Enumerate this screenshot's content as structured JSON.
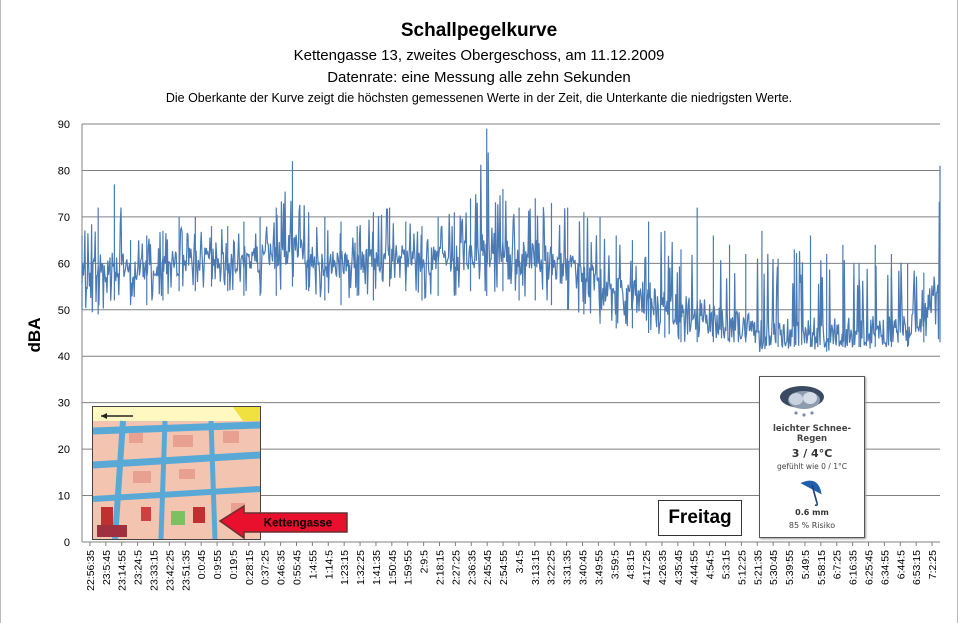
{
  "title": "Schallpegelkurve",
  "subtitle1": "Kettengasse 13, zweites Obergeschoss, am 11.12.2009",
  "subtitle2": "Datenrate: eine Messung alle zehn Sekunden",
  "subtitle3": "Die Oberkante der Kurve zeigt die höchsten gemessenen Werte  in der Zeit, die Unterkante  die niedrigsten Werte.",
  "map_inset": {
    "arrow_label": "Kettengasse"
  },
  "weather_widget": {
    "icon": "snow-rain-cloud-icon",
    "description": "leichter Schnee-Regen",
    "temperature": "3 / 4°C",
    "feels_like": "gefühlt wie 0 / 1°C",
    "rain_icon": "umbrella-icon",
    "precipitation": "0.6 mm",
    "risk": "85 % Risiko"
  },
  "day_label": "Freitag",
  "chart_data": {
    "type": "line",
    "title": "Schallpegelkurve",
    "xlabel": "",
    "ylabel": "dBA",
    "ylim": [
      0,
      90
    ],
    "yticks": [
      0,
      10,
      20,
      30,
      40,
      50,
      60,
      70,
      80,
      90
    ],
    "grid": true,
    "line_color": "#4a7ab4",
    "x_tick_labels": [
      "22:56:35",
      "23:5:45",
      "23:14:55",
      "23:24:5",
      "23:33:15",
      "23:42:25",
      "23:51:35",
      "0:0:45",
      "0:9:55",
      "0:19:5",
      "0:28:15",
      "0:37:25",
      "0:46:35",
      "0:55:45",
      "1:4:55",
      "1:14:5",
      "1:23:15",
      "1:32:25",
      "1:41:35",
      "1:50:45",
      "1:59:55",
      "2:9:5",
      "2:18:15",
      "2:27:25",
      "2:36:35",
      "2:45:45",
      "2:54:55",
      "3:4:5",
      "3:13:15",
      "3:22:25",
      "3:31:35",
      "3:40:45",
      "3:49:55",
      "3:59:5",
      "4:8:15",
      "4:17:25",
      "4:26:35",
      "4:35:45",
      "4:44:55",
      "4:54:5",
      "5:3:15",
      "5:12:25",
      "5:21:35",
      "5:30:45",
      "5:39:55",
      "5:49:5",
      "5:58:15",
      "6:7:25",
      "6:16:35",
      "6:25:45",
      "6:34:55",
      "6:44:5",
      "6:53:15",
      "7:2:25"
    ],
    "series": [
      {
        "x": [
          "22:56:35",
          "23:05:45",
          "23:14:55",
          "23:24:05",
          "23:33:15",
          "23:42:25",
          "23:51:35",
          "00:00:45",
          "00:09:55",
          "00:19:05",
          "00:28:15",
          "00:37:25",
          "00:46:35",
          "00:55:45",
          "01:04:55",
          "01:14:05",
          "01:23:15",
          "01:32:25",
          "01:41:35",
          "01:50:45",
          "01:59:55",
          "02:09:05",
          "02:18:15",
          "02:27:25",
          "02:36:35",
          "02:45:45",
          "02:54:55",
          "03:04:05",
          "03:13:15",
          "03:22:25",
          "03:31:35",
          "03:40:45",
          "03:49:55",
          "03:59:05",
          "04:08:15",
          "04:17:25",
          "04:26:35",
          "04:35:45",
          "04:44:55",
          "04:54:05",
          "05:03:15",
          "05:12:25",
          "05:21:35",
          "05:30:45",
          "05:39:55",
          "05:49:05",
          "05:58:15",
          "06:07:25",
          "06:16:35",
          "06:25:45",
          "06:34:55",
          "06:44:05",
          "06:53:15",
          "07:02:25"
        ],
        "max": [
          66,
          72,
          77,
          65,
          66,
          67,
          70,
          70,
          68,
          68,
          69,
          70,
          72,
          82,
          71,
          70,
          69,
          68,
          71,
          72,
          69,
          68,
          70,
          71,
          74,
          89,
          76,
          72,
          74,
          73,
          72,
          71,
          70,
          66,
          65,
          69,
          67,
          63,
          72,
          66,
          64,
          62,
          67,
          61,
          63,
          66,
          62,
          64,
          60,
          64,
          62,
          60,
          58,
          81
        ],
        "min": [
          50,
          49,
          52,
          51,
          51,
          52,
          54,
          54,
          55,
          54,
          53,
          53,
          53,
          55,
          54,
          52,
          51,
          53,
          52,
          55,
          54,
          52,
          53,
          53,
          54,
          53,
          54,
          52,
          52,
          51,
          50,
          49,
          47,
          46,
          46,
          45,
          44,
          43,
          43,
          43,
          43,
          43,
          42,
          42,
          42,
          42,
          41,
          42,
          42,
          42,
          42,
          42,
          43,
          43
        ],
        "mid": [
          57,
          59,
          60,
          58,
          59,
          60,
          60,
          61,
          61,
          60,
          61,
          61,
          62,
          63,
          61,
          60,
          60,
          60,
          61,
          62,
          61,
          60,
          61,
          61,
          62,
          63,
          62,
          61,
          61,
          60,
          59,
          57,
          55,
          54,
          53,
          52,
          51,
          50,
          49,
          48,
          47,
          46,
          45,
          45,
          45,
          45,
          45,
          45,
          45,
          45,
          45,
          46,
          48,
          58
        ]
      }
    ]
  }
}
